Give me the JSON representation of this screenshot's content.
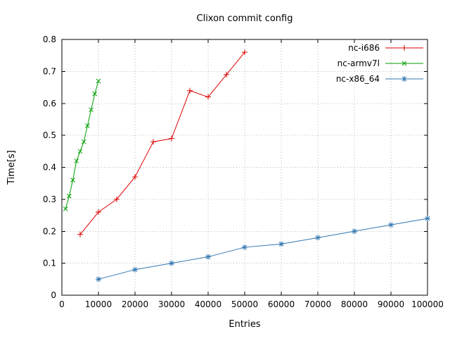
{
  "window": {
    "title": "Clixon commit config"
  },
  "chart_data": {
    "type": "line",
    "title": "Clixon commit config",
    "xlabel": "Entries",
    "ylabel": "Time[s]",
    "xlim": [
      0,
      100000
    ],
    "ylim": [
      0,
      0.8
    ],
    "xticks": [
      0,
      10000,
      20000,
      30000,
      40000,
      50000,
      60000,
      70000,
      80000,
      90000,
      100000
    ],
    "yticks": [
      0,
      0.1,
      0.2,
      0.3,
      0.4,
      0.5,
      0.6,
      0.7,
      0.8
    ],
    "grid": true,
    "grid_style": "dotted",
    "legend_position": "top-right",
    "colors": {
      "grid": "#b8b8b8",
      "border": "#000000",
      "text": "#000000",
      "background": "#ffffff"
    },
    "series": [
      {
        "name": "nc-i686",
        "color": "#dd0000",
        "marker": "plus",
        "x": [
          5000,
          10000,
          15000,
          20000,
          25000,
          30000,
          35000,
          40000,
          45000,
          50000
        ],
        "y": [
          0.19,
          0.26,
          0.3,
          0.37,
          0.48,
          0.49,
          0.64,
          0.62,
          0.69,
          0.76
        ]
      },
      {
        "name": "nc-armv7l",
        "color": "#009e00",
        "marker": "cross",
        "x": [
          1000,
          2000,
          3000,
          4000,
          5000,
          6000,
          7000,
          8000,
          9000,
          10000
        ],
        "y": [
          0.27,
          0.31,
          0.36,
          0.42,
          0.45,
          0.48,
          0.53,
          0.58,
          0.63,
          0.67
        ]
      },
      {
        "name": "nc-x86_64",
        "color": "#3276b1",
        "marker": "star",
        "x": [
          10000,
          20000,
          30000,
          40000,
          50000,
          60000,
          70000,
          80000,
          90000,
          100000
        ],
        "y": [
          0.05,
          0.08,
          0.1,
          0.12,
          0.15,
          0.16,
          0.18,
          0.2,
          0.22,
          0.24
        ]
      }
    ]
  }
}
